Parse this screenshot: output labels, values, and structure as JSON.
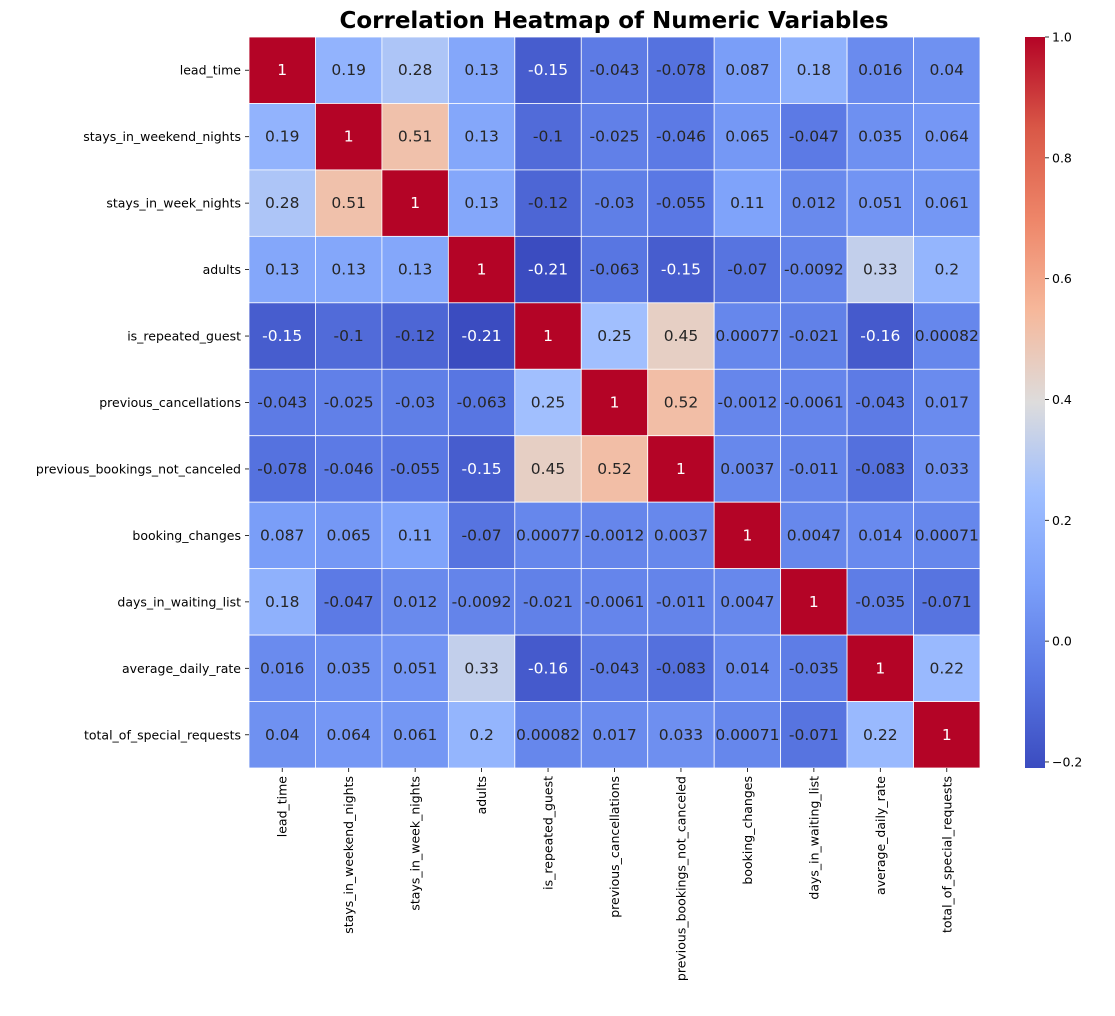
{
  "chart_data": {
    "type": "heatmap",
    "title": "Correlation Heatmap of Numeric Variables",
    "row_labels": [
      "lead_time",
      "stays_in_weekend_nights",
      "stays_in_week_nights",
      "adults",
      "is_repeated_guest",
      "previous_cancellations",
      "previous_bookings_not_canceled",
      "booking_changes",
      "days_in_waiting_list",
      "average_daily_rate",
      "total_of_special_requests"
    ],
    "col_labels": [
      "lead_time",
      "stays_in_weekend_nights",
      "stays_in_week_nights",
      "adults",
      "is_repeated_guest",
      "previous_cancellations",
      "previous_bookings_not_canceled",
      "booking_changes",
      "days_in_waiting_list",
      "average_daily_rate",
      "total_of_special_requests"
    ],
    "values": [
      [
        1,
        0.19,
        0.28,
        0.13,
        -0.15,
        -0.043,
        -0.078,
        0.087,
        0.18,
        0.016,
        0.04
      ],
      [
        0.19,
        1,
        0.51,
        0.13,
        -0.1,
        -0.025,
        -0.046,
        0.065,
        -0.047,
        0.035,
        0.064
      ],
      [
        0.28,
        0.51,
        1,
        0.13,
        -0.12,
        -0.03,
        -0.055,
        0.11,
        0.012,
        0.051,
        0.061
      ],
      [
        0.13,
        0.13,
        0.13,
        1,
        -0.21,
        -0.063,
        -0.15,
        -0.07,
        -0.0092,
        0.33,
        0.2
      ],
      [
        -0.15,
        -0.1,
        -0.12,
        -0.21,
        1,
        0.25,
        0.45,
        0.00077,
        -0.021,
        -0.16,
        0.00082
      ],
      [
        -0.043,
        -0.025,
        -0.03,
        -0.063,
        0.25,
        1,
        0.52,
        -0.0012,
        -0.0061,
        -0.043,
        0.017
      ],
      [
        -0.078,
        -0.046,
        -0.055,
        -0.15,
        0.45,
        0.52,
        1,
        0.0037,
        -0.011,
        -0.083,
        0.033
      ],
      [
        0.087,
        0.065,
        0.11,
        -0.07,
        0.00077,
        -0.0012,
        0.0037,
        1,
        0.0047,
        0.014,
        0.00071
      ],
      [
        0.18,
        -0.047,
        0.012,
        -0.0092,
        -0.021,
        -0.0061,
        -0.011,
        0.0047,
        1,
        -0.035,
        -0.071
      ],
      [
        0.016,
        0.035,
        0.051,
        0.33,
        -0.16,
        -0.043,
        -0.083,
        0.014,
        -0.035,
        1,
        0.22
      ],
      [
        0.04,
        0.064,
        0.061,
        0.2,
        0.00082,
        0.017,
        0.033,
        0.00071,
        -0.071,
        0.22,
        1
      ]
    ],
    "annotations": [
      [
        "1",
        "0.19",
        "0.28",
        "0.13",
        "-0.15",
        "-0.043",
        "-0.078",
        "0.087",
        "0.18",
        "0.016",
        "0.04"
      ],
      [
        "0.19",
        "1",
        "0.51",
        "0.13",
        "-0.1",
        "-0.025",
        "-0.046",
        "0.065",
        "-0.047",
        "0.035",
        "0.064"
      ],
      [
        "0.28",
        "0.51",
        "1",
        "0.13",
        "-0.12",
        "-0.03",
        "-0.055",
        "0.11",
        "0.012",
        "0.051",
        "0.061"
      ],
      [
        "0.13",
        "0.13",
        "0.13",
        "1",
        "-0.21",
        "-0.063",
        "-0.15",
        "-0.07",
        "-0.0092",
        "0.33",
        "0.2"
      ],
      [
        "-0.15",
        "-0.1",
        "-0.12",
        "-0.21",
        "1",
        "0.25",
        "0.45",
        "0.00077",
        "-0.021",
        "-0.16",
        "0.00082"
      ],
      [
        "-0.043",
        "-0.025",
        "-0.03",
        "-0.063",
        "0.25",
        "1",
        "0.52",
        "-0.0012",
        "-0.0061",
        "-0.043",
        "0.017"
      ],
      [
        "-0.078",
        "-0.046",
        "-0.055",
        "-0.15",
        "0.45",
        "0.52",
        "1",
        "0.0037",
        "-0.011",
        "-0.083",
        "0.033"
      ],
      [
        "0.087",
        "0.065",
        "0.11",
        "-0.07",
        "0.00077",
        "-0.0012",
        "0.0037",
        "1",
        "0.0047",
        "0.014",
        "0.00071"
      ],
      [
        "0.18",
        "-0.047",
        "0.012",
        "-0.0092",
        "-0.021",
        "-0.0061",
        "-0.011",
        "0.0047",
        "1",
        "-0.035",
        "-0.071"
      ],
      [
        "0.016",
        "0.035",
        "0.051",
        "0.33",
        "-0.16",
        "-0.043",
        "-0.083",
        "0.014",
        "-0.035",
        "1",
        "0.22"
      ],
      [
        "0.04",
        "0.064",
        "0.061",
        "0.2",
        "0.00082",
        "0.017",
        "0.033",
        "0.00071",
        "-0.071",
        "0.22",
        "1"
      ]
    ],
    "colormap": "coolwarm",
    "vmin": -0.21,
    "vmax": 1.0,
    "colorbar_ticks": [
      1.0,
      0.8,
      0.6,
      0.4,
      0.2,
      0.0,
      -0.2
    ],
    "colorbar_tick_labels": [
      "1.0",
      "0.8",
      "0.6",
      "0.4",
      "0.2",
      "0.0",
      "−0.2"
    ],
    "grid_line_color": "#ffffff",
    "legend": "colorbar-right"
  }
}
